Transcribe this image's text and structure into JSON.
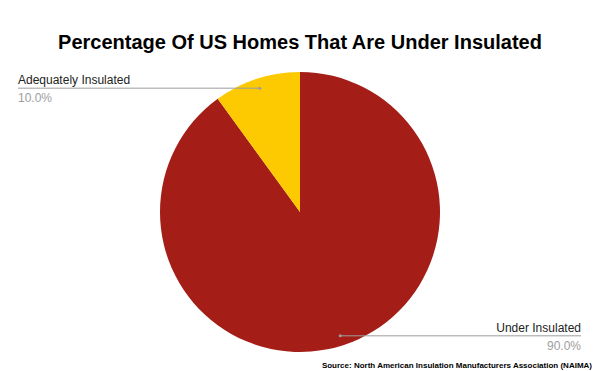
{
  "chart_data": {
    "type": "pie",
    "title": "Percentage Of US Homes That Are Under Insulated",
    "categories": [
      "Under Insulated",
      "Adequately Insulated"
    ],
    "values": [
      90,
      10
    ],
    "value_labels": [
      "90.0%",
      "10.0%"
    ],
    "colors": [
      "#a51d17",
      "#fdc900"
    ],
    "data_labels": true,
    "source": "Source: North American Insulation Manufacturers Association (NAIMA)"
  }
}
